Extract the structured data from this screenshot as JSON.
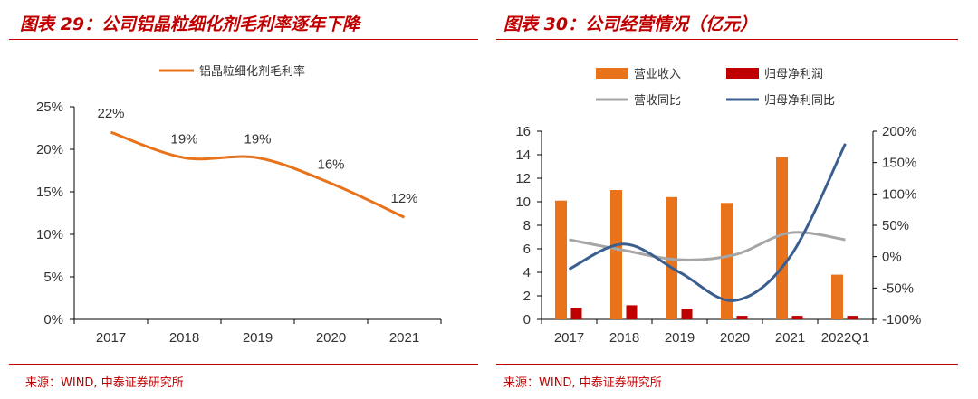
{
  "left": {
    "title": "图表 29：公司铝晶粒细化剂毛利率逐年下降",
    "source": "来源：WIND, 中泰证券研究所"
  },
  "right": {
    "title": "图表 30：公司经营情况（亿元）",
    "source": "来源：WIND, 中泰证券研究所"
  },
  "colors": {
    "title_red": "#c00000",
    "orange": "#e8731a",
    "dark_red": "#c00000",
    "gray": "#a6a6a6",
    "blue": "#3a5f8f"
  },
  "chart_data": [
    {
      "type": "line",
      "x": [
        "2017",
        "2018",
        "2019",
        "2020",
        "2021"
      ],
      "series": [
        {
          "name": "铝晶粒细化剂毛利率",
          "values": [
            22,
            19,
            19,
            16,
            12
          ],
          "labels": [
            "22%",
            "19%",
            "19%",
            "16%",
            "12%"
          ]
        }
      ],
      "ylim": [
        0,
        25
      ],
      "yticks": [
        "0%",
        "5%",
        "10%",
        "15%",
        "20%",
        "25%"
      ],
      "legend": "top-center",
      "grid": false
    },
    {
      "type": "bar",
      "categories": [
        "2017",
        "2018",
        "2019",
        "2020",
        "2021",
        "2022Q1"
      ],
      "series": [
        {
          "name": "营业收入",
          "kind": "bar",
          "axis": "left",
          "values": [
            10.1,
            11.0,
            10.4,
            9.9,
            13.8,
            3.8
          ]
        },
        {
          "name": "归母净利润",
          "kind": "bar",
          "axis": "left",
          "values": [
            1.0,
            1.2,
            0.9,
            0.3,
            0.3,
            0.3
          ]
        },
        {
          "name": "营收同比",
          "kind": "line",
          "axis": "right",
          "values": [
            27,
            10,
            -5,
            3,
            38,
            27
          ]
        },
        {
          "name": "归母净利同比",
          "kind": "line",
          "axis": "right",
          "values": [
            -20,
            20,
            -25,
            -70,
            0,
            180
          ]
        }
      ],
      "ylim_left": [
        0,
        16
      ],
      "yticks_left": [
        "0",
        "2",
        "4",
        "6",
        "8",
        "10",
        "12",
        "14",
        "16"
      ],
      "ylim_right": [
        -100,
        200
      ],
      "yticks_right": [
        "-100%",
        "-50%",
        "0%",
        "50%",
        "100%",
        "150%",
        "200%"
      ],
      "legend": "top",
      "grid": false
    }
  ]
}
